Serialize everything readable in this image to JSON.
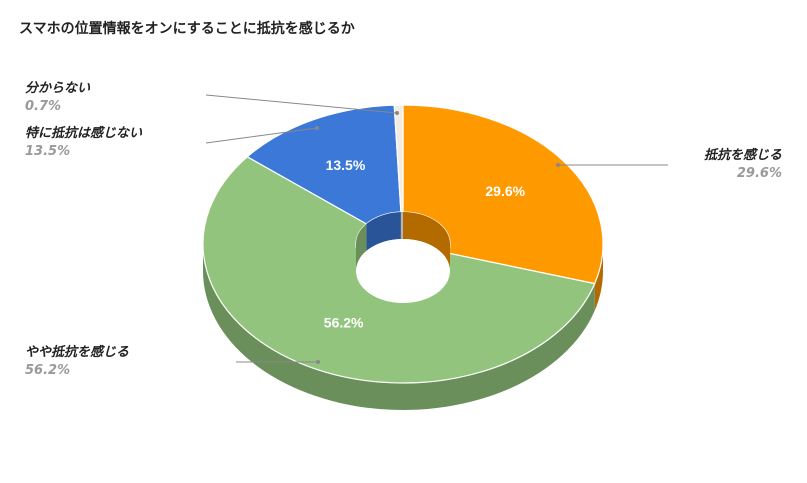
{
  "chart_data": {
    "type": "pie",
    "title": "スマホの位置情報をオンにすることに抵抗を感じるか",
    "slices": [
      {
        "label": "抵抗を感じる",
        "value": 29.6,
        "display": "29.6%",
        "color": "#FF9900",
        "side": "#B36B00"
      },
      {
        "label": "やや抵抗を感じる",
        "value": 56.2,
        "display": "56.2%",
        "color": "#93C47D",
        "side": "#6A8F5A"
      },
      {
        "label": "特に抵抗は感じない",
        "value": 13.5,
        "display": "13.5%",
        "color": "#3C78D8",
        "side": "#2A5498"
      },
      {
        "label": "分からない",
        "value": 0.7,
        "display": "0.7%",
        "color": "#F1EDE4",
        "side": "#B8B4AB"
      }
    ],
    "donut": true,
    "legend": "none"
  }
}
